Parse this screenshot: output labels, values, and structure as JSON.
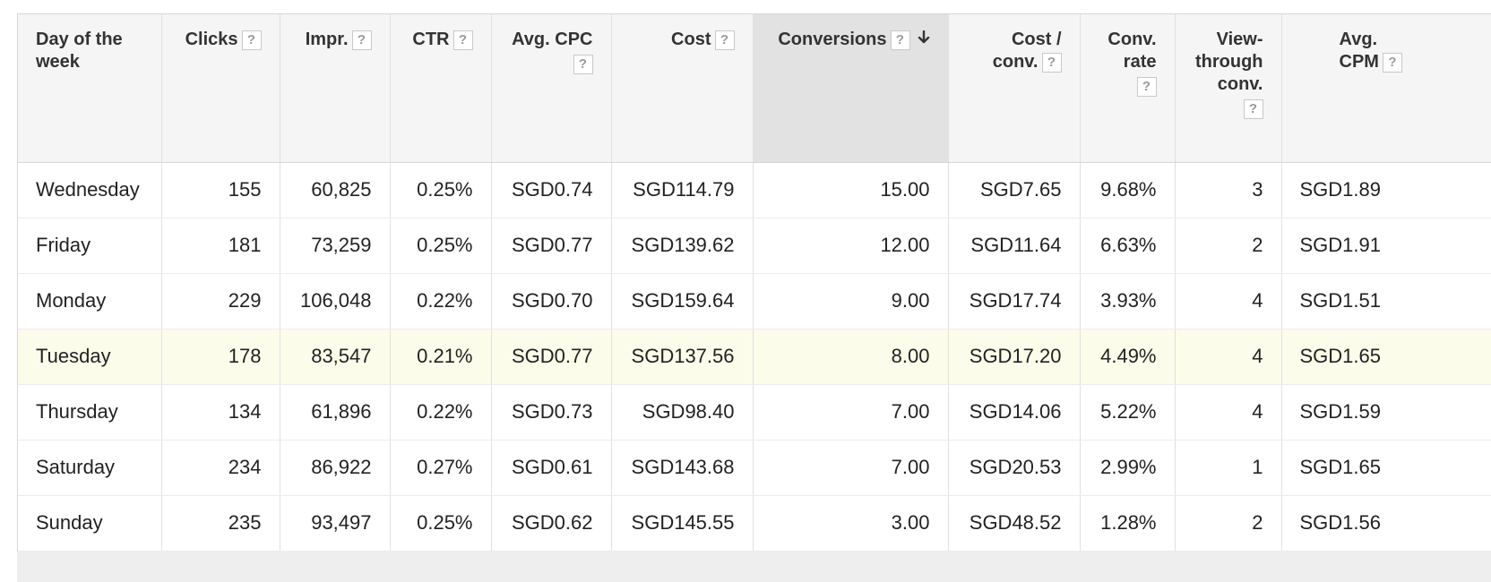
{
  "columns": [
    {
      "label": "Day of the week",
      "help": false,
      "align": "left"
    },
    {
      "label": "Clicks",
      "help": true
    },
    {
      "label": "Impr.",
      "help": true
    },
    {
      "label": "CTR",
      "help": true
    },
    {
      "label": "Avg. CPC",
      "help": true
    },
    {
      "label": "Cost",
      "help": true
    },
    {
      "label": "Conversions",
      "help": true,
      "sorted": true,
      "sort_direction": "descending"
    },
    {
      "label": "Cost / conv.",
      "help": true
    },
    {
      "label": "Conv. rate",
      "help": true
    },
    {
      "label": "View-through conv.",
      "help": true
    },
    {
      "label": "Avg. CPM",
      "help": true
    }
  ],
  "help_glyph": "?",
  "rows": [
    {
      "day": "Wednesday",
      "clicks": "155",
      "impr": "60,825",
      "ctr": "0.25%",
      "avg_cpc": "SGD0.74",
      "cost": "SGD114.79",
      "conversions": "15.00",
      "cost_per_conv": "SGD7.65",
      "conv_rate": "9.68%",
      "view_through": "3",
      "avg_cpm": "SGD1.89",
      "highlight": false
    },
    {
      "day": "Friday",
      "clicks": "181",
      "impr": "73,259",
      "ctr": "0.25%",
      "avg_cpc": "SGD0.77",
      "cost": "SGD139.62",
      "conversions": "12.00",
      "cost_per_conv": "SGD11.64",
      "conv_rate": "6.63%",
      "view_through": "2",
      "avg_cpm": "SGD1.91",
      "highlight": false
    },
    {
      "day": "Monday",
      "clicks": "229",
      "impr": "106,048",
      "ctr": "0.22%",
      "avg_cpc": "SGD0.70",
      "cost": "SGD159.64",
      "conversions": "9.00",
      "cost_per_conv": "SGD17.74",
      "conv_rate": "3.93%",
      "view_through": "4",
      "avg_cpm": "SGD1.51",
      "highlight": false
    },
    {
      "day": "Tuesday",
      "clicks": "178",
      "impr": "83,547",
      "ctr": "0.21%",
      "avg_cpc": "SGD0.77",
      "cost": "SGD137.56",
      "conversions": "8.00",
      "cost_per_conv": "SGD17.20",
      "conv_rate": "4.49%",
      "view_through": "4",
      "avg_cpm": "SGD1.65",
      "highlight": true
    },
    {
      "day": "Thursday",
      "clicks": "134",
      "impr": "61,896",
      "ctr": "0.22%",
      "avg_cpc": "SGD0.73",
      "cost": "SGD98.40",
      "conversions": "7.00",
      "cost_per_conv": "SGD14.06",
      "conv_rate": "5.22%",
      "view_through": "4",
      "avg_cpm": "SGD1.59",
      "highlight": false
    },
    {
      "day": "Saturday",
      "clicks": "234",
      "impr": "86,922",
      "ctr": "0.27%",
      "avg_cpc": "SGD0.61",
      "cost": "SGD143.68",
      "conversions": "7.00",
      "cost_per_conv": "SGD20.53",
      "conv_rate": "2.99%",
      "view_through": "1",
      "avg_cpm": "SGD1.65",
      "highlight": false
    },
    {
      "day": "Sunday",
      "clicks": "235",
      "impr": "93,497",
      "ctr": "0.25%",
      "avg_cpc": "SGD0.62",
      "cost": "SGD145.55",
      "conversions": "3.00",
      "cost_per_conv": "SGD48.52",
      "conv_rate": "1.28%",
      "view_through": "2",
      "avg_cpm": "SGD1.56",
      "highlight": false
    }
  ],
  "colors": {
    "header_bg": "#f5f5f5",
    "sorted_header_bg": "#e2e2e2",
    "highlight_row_bg": "#fbfdea",
    "grid_line": "#e0e0e0"
  },
  "icons": {
    "help": "help-icon",
    "sort": "sort-descending-arrow-icon"
  }
}
